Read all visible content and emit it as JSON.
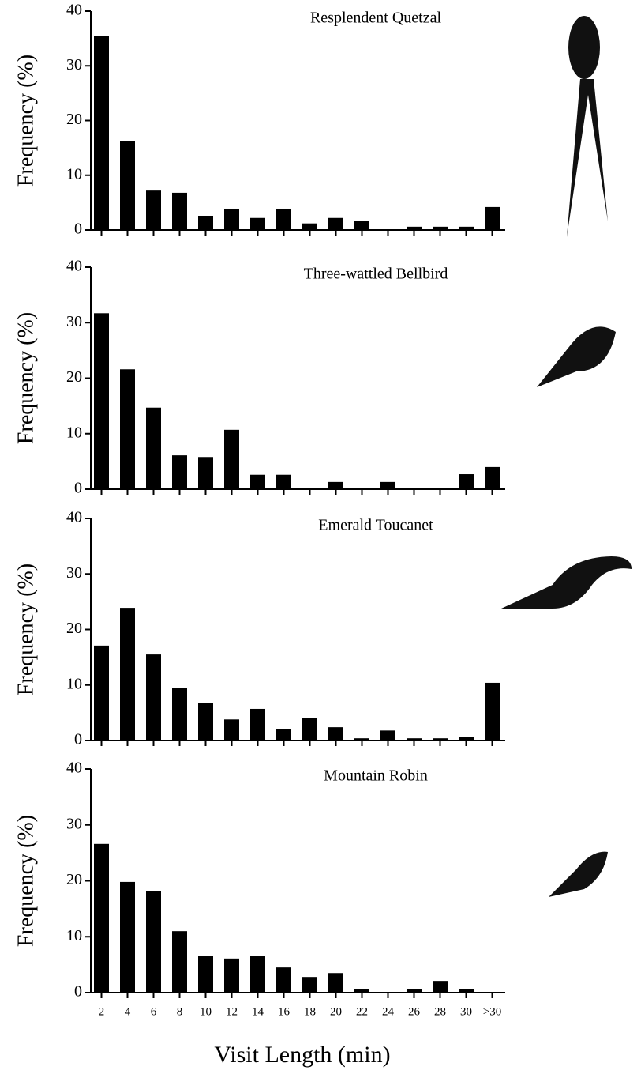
{
  "chart_data": [
    {
      "type": "bar",
      "title": "Resplendent Quetzal",
      "ylabel": "Frequency (%)",
      "color": "#000000",
      "categories": [
        null,
        null,
        null,
        null,
        null,
        null,
        null,
        null,
        null,
        null,
        null,
        null,
        null,
        null,
        null,
        null
      ],
      "values": [
        35.5,
        16.3,
        7.2,
        6.8,
        2.6,
        3.9,
        2.2,
        3.9,
        1.2,
        2.2,
        1.7,
        0,
        0.6,
        0.6,
        0.6,
        4.2
      ],
      "ylim": [
        0,
        40
      ],
      "yticks": [
        0,
        10,
        20,
        30,
        40
      ]
    },
    {
      "type": "bar",
      "title": "Three-wattled Bellbird",
      "ylabel": "Frequency (%)",
      "color": "#000000",
      "categories": [
        null,
        null,
        null,
        null,
        null,
        null,
        null,
        null,
        null,
        null,
        null,
        null,
        null,
        null,
        null,
        null
      ],
      "values": [
        31.7,
        21.6,
        14.7,
        6.1,
        5.8,
        10.7,
        2.6,
        2.6,
        0,
        1.3,
        0,
        1.3,
        0,
        0,
        2.7,
        4.0
      ],
      "ylim": [
        0,
        40
      ],
      "yticks": [
        0,
        10,
        20,
        30,
        40
      ]
    },
    {
      "type": "bar",
      "title": "Emerald Toucanet",
      "ylabel": "Frequency (%)",
      "color": "#000000",
      "categories": [
        null,
        null,
        null,
        null,
        null,
        null,
        null,
        null,
        null,
        null,
        null,
        null,
        null,
        null,
        null,
        null
      ],
      "values": [
        17.1,
        23.9,
        15.5,
        9.4,
        6.7,
        3.8,
        5.7,
        2.1,
        4.1,
        2.4,
        0.4,
        1.8,
        0.4,
        0.4,
        0.7,
        10.4
      ],
      "ylim": [
        0,
        40
      ],
      "yticks": [
        0,
        10,
        20,
        30,
        40
      ]
    },
    {
      "type": "bar",
      "title": "Mountain Robin",
      "ylabel": "Frequency (%)",
      "xlabel": "Visit Length (min)",
      "color": "#000000",
      "categories": [
        "2",
        "4",
        "6",
        "8",
        "10",
        "12",
        "14",
        "16",
        "18",
        "20",
        "22",
        "24",
        "26",
        "28",
        "30",
        ">30"
      ],
      "values": [
        26.6,
        19.8,
        18.2,
        11.0,
        6.5,
        6.1,
        6.5,
        4.5,
        2.8,
        3.5,
        0.7,
        0,
        0.7,
        2.1,
        0.7,
        0
      ],
      "ylim": [
        0,
        40
      ],
      "yticks": [
        0,
        10,
        20,
        30,
        40
      ]
    }
  ]
}
